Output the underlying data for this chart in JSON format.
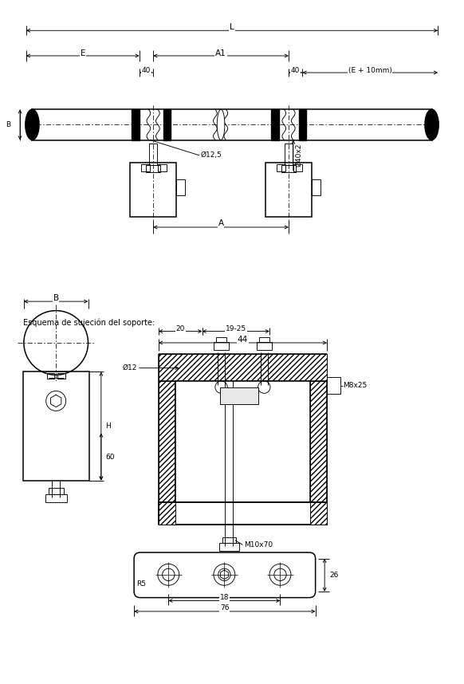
{
  "bg": "#ffffff",
  "lc": "#000000",
  "fig_w": 5.82,
  "fig_h": 8.58,
  "dpi": 100,
  "lw_main": 1.1,
  "lw_thin": 0.65,
  "lw_dim": 0.65,
  "fs": 7.5,
  "fs_sm": 6.5,
  "labels": {
    "L": "L",
    "E": "E",
    "A1": "A1",
    "B": "B",
    "forty": "40",
    "phi125": "Ø12,5",
    "phi40x2": "Ø40x2",
    "Eplus": "(E + 10mm)",
    "A": "A",
    "sujecion": "Esquema de sujeción del soporte:",
    "d44": "44",
    "d20": "20",
    "d1925": "19-25",
    "phi12": "Ø12",
    "M8x25": "M8x25",
    "M10x70": "M10x70",
    "H": "H",
    "d60": "60",
    "R5": "R5",
    "d18": "18",
    "d76": "76",
    "d26": "26"
  }
}
